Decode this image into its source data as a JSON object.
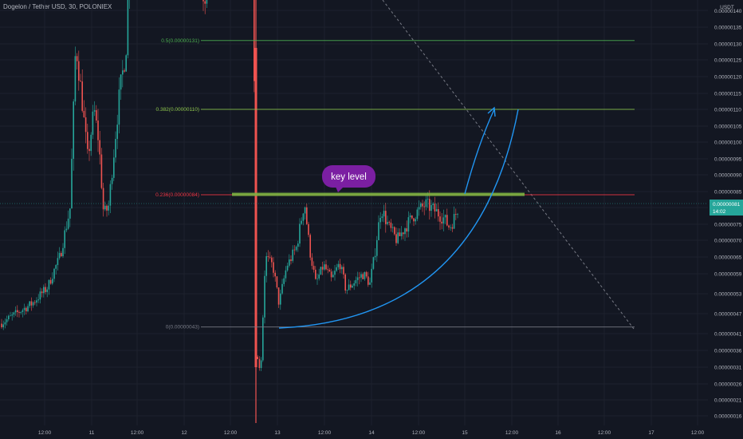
{
  "title": "Dogelon / Tether USD, 30, POLONIEX",
  "chart_data": {
    "type": "candlestick",
    "symbol": "Dogelon / Tether USD",
    "interval": "30",
    "exchange": "POLONIEX",
    "currency": "USDT",
    "price_axis_ticks": [
      "0.00000140",
      "0.00000135",
      "0.00000130",
      "0.00000125",
      "0.00000120",
      "0.00000115",
      "0.00000110",
      "0.00000105",
      "0.00000100",
      "0.00000095",
      "0.00000090",
      "0.00000085",
      "0.00000080",
      "0.00000075",
      "0.00000070",
      "0.00000065",
      "0.00000059",
      "0.00000053",
      "0.00000047",
      "0.00000041",
      "0.00000036",
      "0.00000031",
      "0.00000026",
      "0.00000021",
      "0.00000016"
    ],
    "time_axis_ticks": [
      "12:00",
      "11",
      "12:00",
      "12",
      "12:00",
      "13",
      "12:00",
      "14",
      "12:00",
      "15",
      "12:00",
      "16",
      "12:00",
      "17",
      "12:00"
    ],
    "current_price": "0.00000081",
    "countdown": "14:02",
    "fib_levels": [
      {
        "label": "0.5(0.00000131)",
        "price": 1.31e-06,
        "color": "#4caf50"
      },
      {
        "label": "0.382(0.00000110)",
        "price": 1.1e-06,
        "color": "#8bc34a"
      },
      {
        "label": "0.236(0.00000084)",
        "price": 8.4e-07,
        "color": "#f23645"
      },
      {
        "label": "0(0.00000043)",
        "price": 4.3e-07,
        "color": "#787b86"
      }
    ],
    "annotations": [
      "key level"
    ],
    "colors": {
      "up": "#26a69a",
      "down": "#ef5350",
      "background": "#131722",
      "arc": "#2196f3",
      "key_level": "#7cb342",
      "callout": "#7b1fa2"
    },
    "grid": true
  }
}
